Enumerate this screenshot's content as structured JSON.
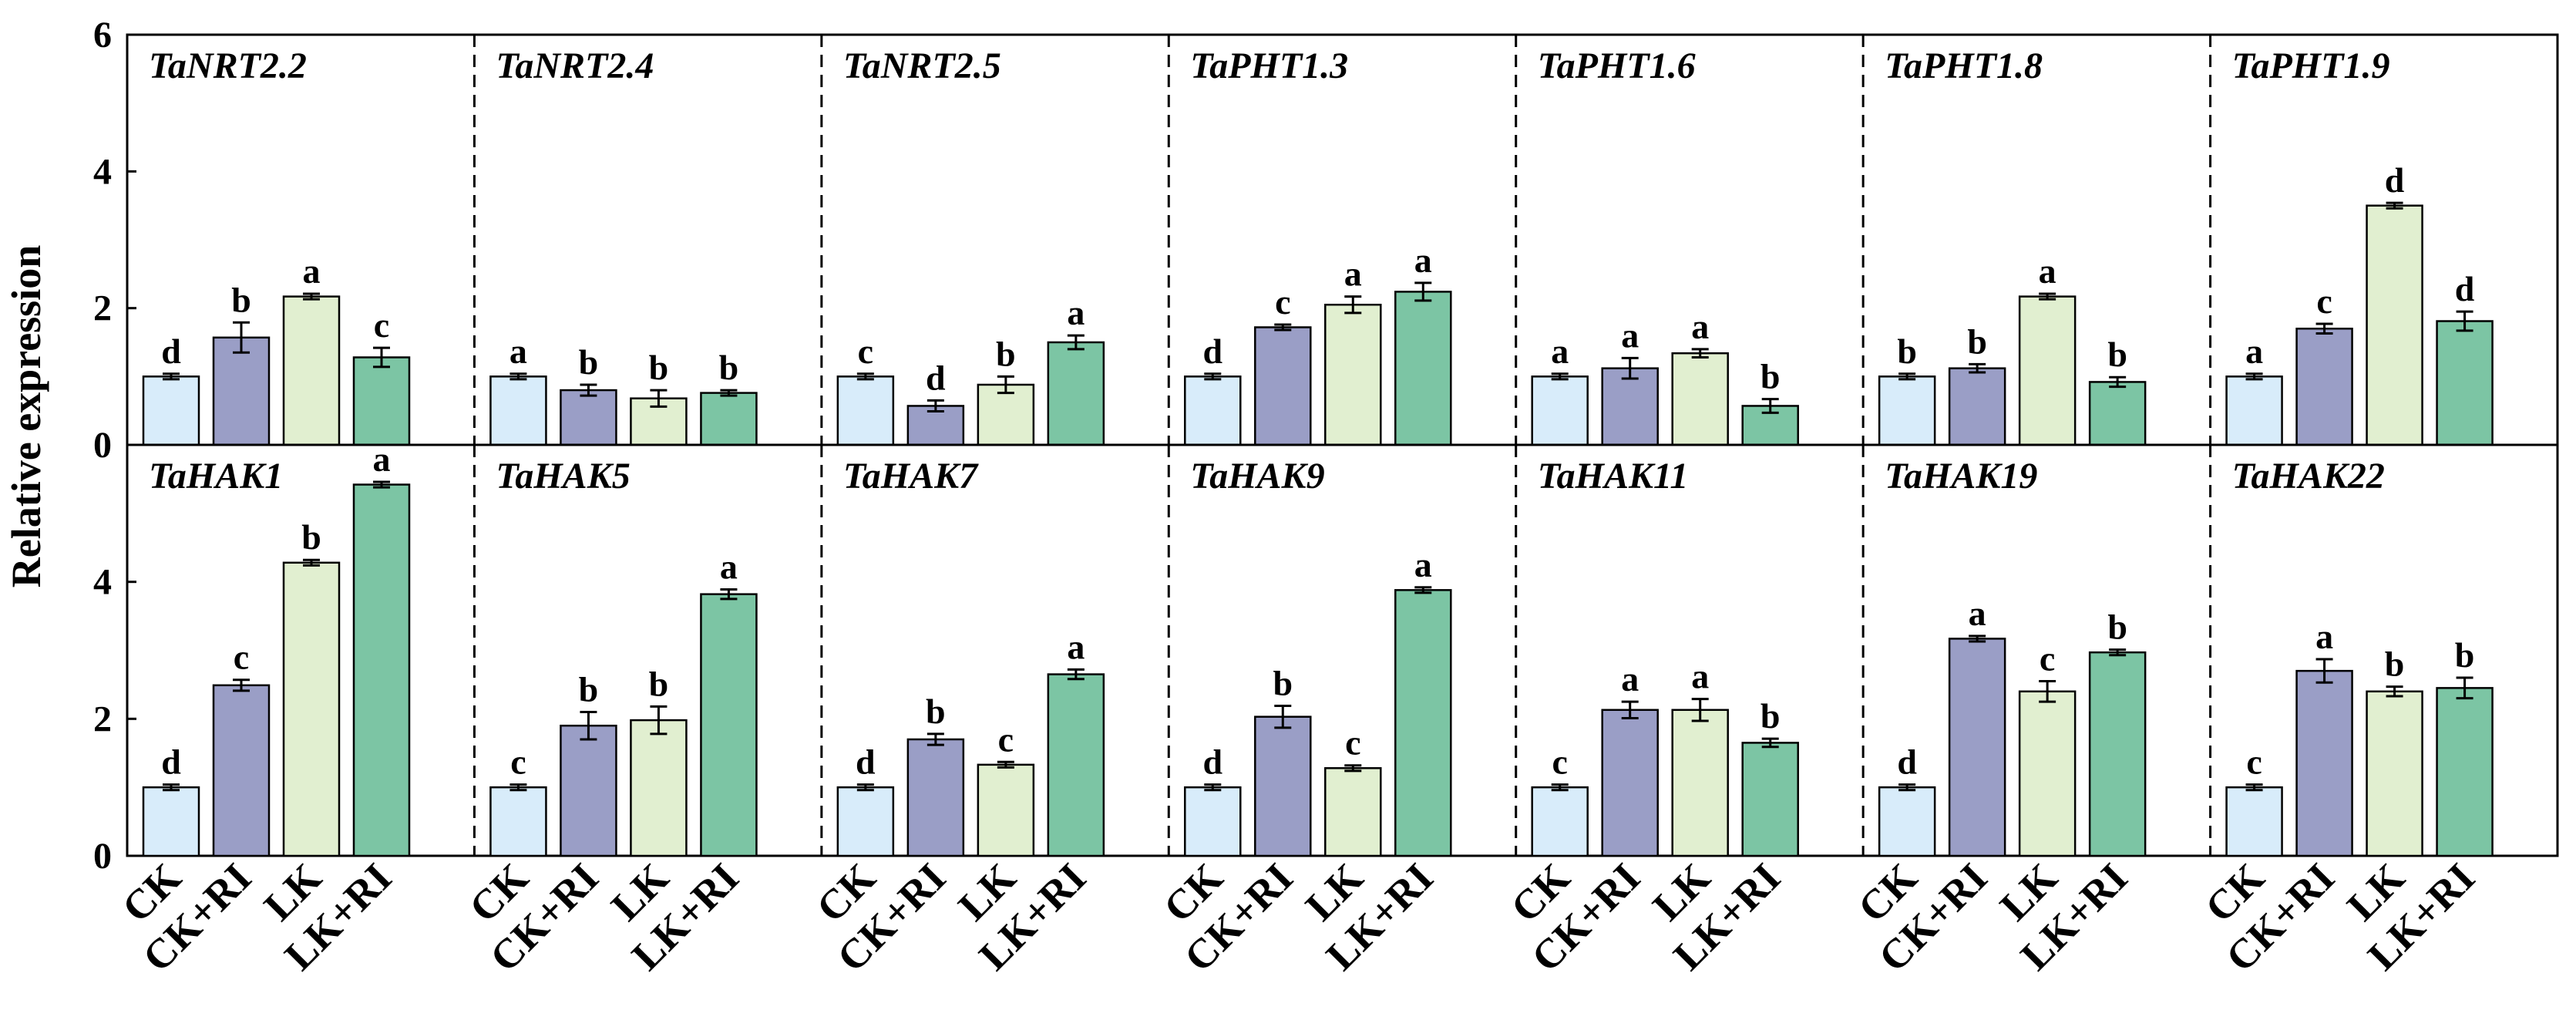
{
  "figure": {
    "ylabel": "Relative expression"
  },
  "chart_data": {
    "type": "bar",
    "categories": [
      "CK",
      "CK+RI",
      "LK",
      "LK+RI"
    ],
    "bar_colors": [
      "#d8ecfa",
      "#9a9ec6",
      "#e1efd0",
      "#7cc5a4"
    ],
    "edge_color": "#000000",
    "grid": false,
    "panels": [
      {
        "ylim": [
          0,
          6
        ],
        "yticks": [
          0,
          2,
          4,
          6
        ],
        "genes": [
          {
            "title": "TaNRT2.2",
            "values": [
              1.0,
              1.57,
              2.17,
              1.28
            ],
            "errors": [
              0.04,
              0.22,
              0.04,
              0.14
            ],
            "letters": [
              "d",
              "b",
              "a",
              "c"
            ]
          },
          {
            "title": "TaNRT2.4",
            "values": [
              1.0,
              0.8,
              0.68,
              0.76
            ],
            "errors": [
              0.04,
              0.08,
              0.12,
              0.04
            ],
            "letters": [
              "a",
              "b",
              "b",
              "b"
            ]
          },
          {
            "title": "TaNRT2.5",
            "values": [
              1.0,
              0.57,
              0.88,
              1.5
            ],
            "errors": [
              0.04,
              0.08,
              0.12,
              0.1
            ],
            "letters": [
              "c",
              "d",
              "b",
              "a"
            ]
          },
          {
            "title": "TaPHT1.3",
            "values": [
              1.0,
              1.72,
              2.05,
              2.24
            ],
            "errors": [
              0.04,
              0.04,
              0.12,
              0.13
            ],
            "letters": [
              "d",
              "c",
              "a",
              "a"
            ]
          },
          {
            "title": "TaPHT1.6",
            "values": [
              1.0,
              1.12,
              1.34,
              0.57
            ],
            "errors": [
              0.04,
              0.15,
              0.06,
              0.1
            ],
            "letters": [
              "a",
              "a",
              "a",
              "b"
            ]
          },
          {
            "title": "TaPHT1.8",
            "values": [
              1.0,
              1.12,
              2.17,
              0.92
            ],
            "errors": [
              0.04,
              0.06,
              0.04,
              0.07
            ],
            "letters": [
              "b",
              "b",
              "a",
              "b"
            ]
          },
          {
            "title": "TaPHT1.9",
            "values": [
              1.0,
              1.7,
              3.5,
              1.81
            ],
            "errors": [
              0.04,
              0.07,
              0.04,
              0.14
            ],
            "letters": [
              "a",
              "c",
              "d",
              "d"
            ]
          }
        ]
      },
      {
        "ylim": [
          0,
          6
        ],
        "yticks": [
          0,
          2,
          4
        ],
        "genes": [
          {
            "title": "TaHAK1",
            "values": [
              1.0,
              2.49,
              4.28,
              5.42
            ],
            "errors": [
              0.04,
              0.08,
              0.04,
              0.04
            ],
            "letters": [
              "d",
              "c",
              "b",
              "a"
            ]
          },
          {
            "title": "TaHAK5",
            "values": [
              1.0,
              1.9,
              1.98,
              3.82
            ],
            "errors": [
              0.04,
              0.2,
              0.2,
              0.07
            ],
            "letters": [
              "c",
              "b",
              "b",
              "a"
            ]
          },
          {
            "title": "TaHAK7",
            "values": [
              1.0,
              1.7,
              1.33,
              2.65
            ],
            "errors": [
              0.04,
              0.08,
              0.04,
              0.07
            ],
            "letters": [
              "d",
              "b",
              "c",
              "a"
            ]
          },
          {
            "title": "TaHAK9",
            "values": [
              1.0,
              2.03,
              1.28,
              3.88
            ],
            "errors": [
              0.04,
              0.16,
              0.04,
              0.04
            ],
            "letters": [
              "d",
              "b",
              "c",
              "a"
            ]
          },
          {
            "title": "TaHAK11",
            "values": [
              1.0,
              2.13,
              2.13,
              1.65
            ],
            "errors": [
              0.04,
              0.12,
              0.16,
              0.06
            ],
            "letters": [
              "c",
              "a",
              "a",
              "b"
            ]
          },
          {
            "title": "TaHAK19",
            "values": [
              1.0,
              3.17,
              2.4,
              2.97
            ],
            "errors": [
              0.04,
              0.04,
              0.15,
              0.04
            ],
            "letters": [
              "d",
              "a",
              "c",
              "b"
            ]
          },
          {
            "title": "TaHAK22",
            "values": [
              1.0,
              2.7,
              2.4,
              2.45
            ],
            "errors": [
              0.04,
              0.17,
              0.07,
              0.15
            ],
            "letters": [
              "c",
              "a",
              "b",
              "b"
            ]
          }
        ]
      }
    ]
  }
}
